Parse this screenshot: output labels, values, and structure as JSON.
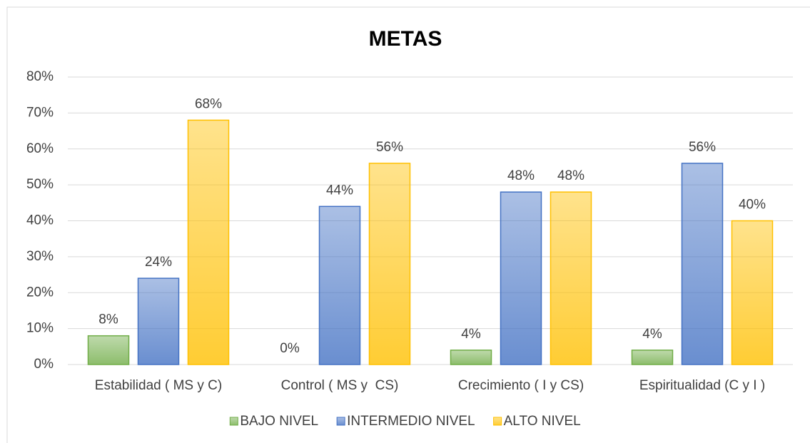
{
  "chart_data": {
    "type": "bar",
    "title": "METAS",
    "categories": [
      "Estabilidad ( MS y C)",
      "Control ( MS y  CS)",
      "Crecimiento ( I y CS)",
      "Espiritualidad (C y I )"
    ],
    "series": [
      {
        "name": "BAJO NIVEL",
        "color": "#70ad47",
        "values": [
          8,
          0,
          4,
          4
        ],
        "value_labels": [
          "8%",
          "0%",
          "4%",
          "4%"
        ]
      },
      {
        "name": "INTERMEDIO NIVEL",
        "color": "#4472c4",
        "values": [
          24,
          44,
          48,
          56
        ],
        "value_labels": [
          "24%",
          "44%",
          "48%",
          "56%"
        ]
      },
      {
        "name": "ALTO NIVEL",
        "color": "#ffc000",
        "values": [
          68,
          56,
          48,
          40
        ],
        "value_labels": [
          "68%",
          "56%",
          "48%",
          "40%"
        ]
      }
    ],
    "ylim": [
      0,
      80
    ],
    "yticks": [
      {
        "value": 0,
        "label": "0%"
      },
      {
        "value": 10,
        "label": "10%"
      },
      {
        "value": 20,
        "label": "20%"
      },
      {
        "value": 30,
        "label": "30%"
      },
      {
        "value": 40,
        "label": "40%"
      },
      {
        "value": 50,
        "label": "50%"
      },
      {
        "value": 60,
        "label": "60%"
      },
      {
        "value": 70,
        "label": "70%"
      },
      {
        "value": 80,
        "label": "80%"
      }
    ],
    "grid": true,
    "legend": "bottom"
  }
}
